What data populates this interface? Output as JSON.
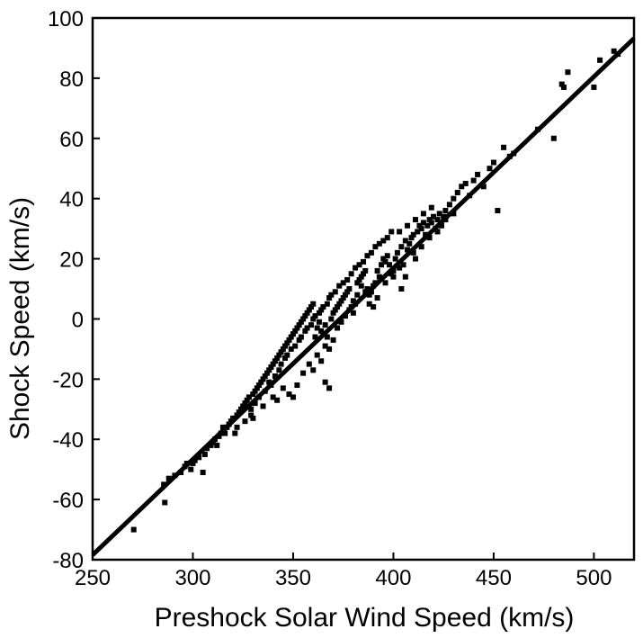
{
  "chart_data": {
    "type": "scatter",
    "title": "",
    "xlabel": "Preshock Solar Wind Speed (km/s)",
    "ylabel": "Shock Speed (km/s)",
    "xlim": [
      250,
      520
    ],
    "ylim": [
      -80,
      100
    ],
    "x_ticks": [
      250,
      300,
      350,
      400,
      450,
      500
    ],
    "y_ticks": [
      -80,
      -60,
      -40,
      -20,
      0,
      20,
      40,
      60,
      80,
      100
    ],
    "grid": false,
    "fit_line": {
      "name": "linear fit",
      "x": [
        250,
        520
      ],
      "y": [
        -78.4,
        93.2
      ]
    },
    "series": [
      {
        "name": "events",
        "points": [
          [
            270.5,
            -70
          ],
          [
            285.5,
            -55
          ],
          [
            286,
            -61
          ],
          [
            288,
            -53
          ],
          [
            291,
            -52
          ],
          [
            294,
            -51
          ],
          [
            296,
            -49
          ],
          [
            297,
            -48
          ],
          [
            299,
            -50
          ],
          [
            300,
            -48
          ],
          [
            301,
            -47
          ],
          [
            303,
            -46
          ],
          [
            305,
            -51
          ],
          [
            306,
            -45
          ],
          [
            307,
            -43
          ],
          [
            309,
            -42
          ],
          [
            310,
            -41
          ],
          [
            311,
            -40
          ],
          [
            312,
            -42
          ],
          [
            313,
            -39
          ],
          [
            314,
            -38
          ],
          [
            315,
            -36
          ],
          [
            317,
            -36
          ],
          [
            318,
            -35
          ],
          [
            320,
            -33
          ],
          [
            321,
            -38
          ],
          [
            322,
            -32
          ],
          [
            323,
            -31
          ],
          [
            324,
            -30
          ],
          [
            325,
            -29
          ],
          [
            326,
            -28
          ],
          [
            327,
            -27
          ],
          [
            328,
            -26
          ],
          [
            329,
            -30
          ],
          [
            330,
            -25
          ],
          [
            331,
            -24
          ],
          [
            332,
            -23
          ],
          [
            333,
            -22
          ],
          [
            334,
            -21
          ],
          [
            335,
            -20
          ],
          [
            336,
            -19
          ],
          [
            337,
            -18
          ],
          [
            338,
            -17
          ],
          [
            339,
            -16
          ],
          [
            340,
            -15
          ],
          [
            341,
            -14
          ],
          [
            342,
            -13
          ],
          [
            343,
            -12
          ],
          [
            344,
            -11
          ],
          [
            345,
            -10
          ],
          [
            346,
            -9
          ],
          [
            347,
            -8
          ],
          [
            348,
            -7
          ],
          [
            349,
            -6
          ],
          [
            350,
            -5
          ],
          [
            351,
            -4
          ],
          [
            352,
            -3
          ],
          [
            353,
            -2
          ],
          [
            354,
            -1
          ],
          [
            355,
            0
          ],
          [
            356,
            1
          ],
          [
            357,
            2
          ],
          [
            358,
            3
          ],
          [
            359,
            4
          ],
          [
            360,
            5
          ],
          [
            361,
            -6
          ],
          [
            362,
            -3
          ],
          [
            363,
            -1
          ],
          [
            364,
            -4
          ],
          [
            365,
            -5
          ],
          [
            366,
            -2
          ],
          [
            367,
            -6
          ],
          [
            368,
            -23
          ],
          [
            366,
            -21
          ],
          [
            369,
            0
          ],
          [
            370,
            2
          ],
          [
            371,
            3
          ],
          [
            372,
            4
          ],
          [
            373,
            5
          ],
          [
            374,
            6
          ],
          [
            375,
            7
          ],
          [
            376,
            8
          ],
          [
            377,
            9
          ],
          [
            378,
            10
          ],
          [
            379,
            4
          ],
          [
            380,
            6
          ],
          [
            381,
            5
          ],
          [
            382,
            12
          ],
          [
            383,
            13
          ],
          [
            384,
            14
          ],
          [
            385,
            15
          ],
          [
            386,
            16
          ],
          [
            387,
            10
          ],
          [
            388,
            8
          ],
          [
            389,
            9
          ],
          [
            390,
            11
          ],
          [
            391,
            12
          ],
          [
            392,
            7
          ],
          [
            393,
            14
          ],
          [
            394,
            18
          ],
          [
            395,
            20
          ],
          [
            396,
            19
          ],
          [
            397,
            21
          ],
          [
            398,
            18
          ],
          [
            399,
            15
          ],
          [
            400,
            16
          ],
          [
            401,
            20
          ],
          [
            402,
            22
          ],
          [
            403,
            17
          ],
          [
            404,
            24
          ],
          [
            405,
            18
          ],
          [
            406,
            26
          ],
          [
            407,
            23
          ],
          [
            408,
            25
          ],
          [
            409,
            27
          ],
          [
            410,
            28
          ],
          [
            411,
            20
          ],
          [
            412,
            29
          ],
          [
            413,
            31
          ],
          [
            414,
            30
          ],
          [
            415,
            32
          ],
          [
            416,
            28
          ],
          [
            417,
            31
          ],
          [
            418,
            33
          ],
          [
            419,
            32
          ],
          [
            420,
            34
          ],
          [
            421,
            30
          ],
          [
            422,
            33
          ],
          [
            423,
            35
          ],
          [
            424,
            31
          ],
          [
            425,
            34
          ],
          [
            426,
            36
          ],
          [
            428,
            38
          ],
          [
            430,
            40
          ],
          [
            432,
            42
          ],
          [
            434,
            44
          ],
          [
            436,
            45
          ],
          [
            438,
            41
          ],
          [
            440,
            46
          ],
          [
            442,
            48
          ],
          [
            445,
            44
          ],
          [
            448,
            50
          ],
          [
            450,
            52
          ],
          [
            452,
            36
          ],
          [
            455,
            57
          ],
          [
            458,
            54
          ],
          [
            460,
            55
          ],
          [
            472,
            63
          ],
          [
            480,
            60
          ],
          [
            484,
            78
          ],
          [
            485,
            77
          ],
          [
            487,
            82
          ],
          [
            500,
            77
          ],
          [
            503,
            86
          ],
          [
            510,
            89
          ],
          [
            512,
            88
          ],
          [
            330,
            -33
          ],
          [
            335,
            -29
          ],
          [
            340,
            -26
          ],
          [
            342,
            -27
          ],
          [
            345,
            -23
          ],
          [
            348,
            -25
          ],
          [
            350,
            -26
          ],
          [
            352,
            -22
          ],
          [
            355,
            -18
          ],
          [
            358,
            -15
          ],
          [
            360,
            -17
          ],
          [
            362,
            -12
          ],
          [
            364,
            -14
          ],
          [
            366,
            -9
          ],
          [
            368,
            -10
          ],
          [
            370,
            -7
          ],
          [
            372,
            -3
          ],
          [
            374,
            -1
          ],
          [
            376,
            1
          ],
          [
            378,
            3
          ],
          [
            380,
            2
          ],
          [
            382,
            8
          ],
          [
            384,
            11
          ],
          [
            386,
            9
          ],
          [
            388,
            5
          ],
          [
            390,
            4
          ],
          [
            392,
            16
          ],
          [
            396,
            12
          ],
          [
            400,
            14
          ],
          [
            404,
            10
          ],
          [
            406,
            14
          ],
          [
            410,
            22
          ],
          [
            414,
            24
          ],
          [
            418,
            27
          ],
          [
            422,
            29
          ],
          [
            426,
            33
          ],
          [
            430,
            35
          ],
          [
            316,
            -38
          ],
          [
            319,
            -34
          ],
          [
            322,
            -36
          ],
          [
            326,
            -34
          ],
          [
            329,
            -32
          ],
          [
            331,
            -28
          ],
          [
            333,
            -26
          ],
          [
            336,
            -24
          ],
          [
            338,
            -21
          ],
          [
            339,
            -22
          ],
          [
            341,
            -19
          ],
          [
            343,
            -17
          ],
          [
            344,
            -15
          ],
          [
            346,
            -13
          ],
          [
            347,
            -12
          ],
          [
            349,
            -10
          ],
          [
            351,
            -9
          ],
          [
            353,
            -7
          ],
          [
            354,
            -6
          ],
          [
            356,
            -4
          ],
          [
            357,
            -3
          ],
          [
            359,
            -2
          ],
          [
            360,
            0
          ],
          [
            361,
            1
          ],
          [
            363,
            2
          ],
          [
            364,
            3
          ],
          [
            365,
            4
          ],
          [
            367,
            5
          ],
          [
            368,
            7
          ],
          [
            369,
            8
          ],
          [
            371,
            9
          ],
          [
            373,
            11
          ],
          [
            375,
            12
          ],
          [
            377,
            13
          ],
          [
            379,
            15
          ],
          [
            381,
            17
          ],
          [
            383,
            18
          ],
          [
            385,
            19
          ],
          [
            387,
            21
          ],
          [
            389,
            22
          ],
          [
            391,
            24
          ],
          [
            393,
            25
          ],
          [
            395,
            26
          ],
          [
            397,
            27
          ],
          [
            399,
            29
          ],
          [
            403,
            29
          ],
          [
            407,
            31
          ],
          [
            411,
            33
          ],
          [
            415,
            35
          ],
          [
            419,
            37
          ]
        ]
      }
    ]
  }
}
